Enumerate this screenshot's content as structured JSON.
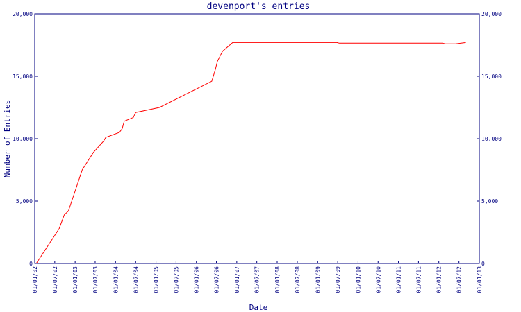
{
  "chart_data": {
    "type": "line",
    "title": "devenport's entries",
    "xlabel": "Date",
    "ylabel": "Number of Entries",
    "xlim": [
      "2002-01-01",
      "2013-01-01"
    ],
    "xticks": [
      {
        "value": "2002-01-01",
        "label": "01/01/02"
      },
      {
        "value": "2002-07-01",
        "label": "01/07/02"
      },
      {
        "value": "2003-01-01",
        "label": "01/01/03"
      },
      {
        "value": "2003-07-01",
        "label": "01/07/03"
      },
      {
        "value": "2004-01-01",
        "label": "01/01/04"
      },
      {
        "value": "2004-07-01",
        "label": "01/07/04"
      },
      {
        "value": "2005-01-01",
        "label": "01/01/05"
      },
      {
        "value": "2005-07-01",
        "label": "01/07/05"
      },
      {
        "value": "2006-01-01",
        "label": "01/01/06"
      },
      {
        "value": "2006-07-01",
        "label": "01/07/06"
      },
      {
        "value": "2007-01-01",
        "label": "01/01/07"
      },
      {
        "value": "2007-07-01",
        "label": "01/07/07"
      },
      {
        "value": "2008-01-01",
        "label": "01/01/08"
      },
      {
        "value": "2008-07-01",
        "label": "01/07/08"
      },
      {
        "value": "2009-01-01",
        "label": "01/01/09"
      },
      {
        "value": "2009-07-01",
        "label": "01/07/09"
      },
      {
        "value": "2010-01-01",
        "label": "01/01/10"
      },
      {
        "value": "2010-07-01",
        "label": "01/07/10"
      },
      {
        "value": "2011-01-01",
        "label": "01/01/11"
      },
      {
        "value": "2011-07-01",
        "label": "01/07/11"
      },
      {
        "value": "2012-01-01",
        "label": "01/01/12"
      },
      {
        "value": "2012-07-01",
        "label": "01/07/12"
      },
      {
        "value": "2013-01-01",
        "label": "01/01/13"
      }
    ],
    "ylim": [
      0,
      20000
    ],
    "yticks": [
      0,
      {
        "value": 5000,
        "label": "5,000"
      },
      {
        "value": 10000,
        "label": "10,000"
      },
      {
        "value": 15000,
        "label": "15,000"
      },
      {
        "value": 20000,
        "label": "20,000"
      }
    ],
    "x": [
      "2002-01-15",
      "2002-08-10",
      "2002-09-25",
      "2002-11-01",
      "2002-12-28",
      "2003-03-06",
      "2003-06-15",
      "2003-09-15",
      "2003-10-05",
      "2004-02-05",
      "2004-03-01",
      "2004-03-20",
      "2004-06-10",
      "2004-07-01",
      "2005-02-01",
      "2006-05-20",
      "2006-06-20",
      "2006-07-10",
      "2006-08-25",
      "2006-11-25",
      "2009-06-25",
      "2009-07-15",
      "2012-02-01",
      "2012-03-01",
      "2012-06-01",
      "2012-09-01"
    ],
    "series": [
      {
        "color": "#ff0000",
        "values": [
          0,
          2800,
          3900,
          4200,
          5700,
          7500,
          8900,
          9800,
          10100,
          10500,
          10800,
          11400,
          11700,
          12100,
          12500,
          14600,
          15500,
          16200,
          17000,
          17700,
          17700,
          17650,
          17650,
          17600,
          17600,
          17700
        ]
      }
    ],
    "axis_color": "#000080"
  }
}
